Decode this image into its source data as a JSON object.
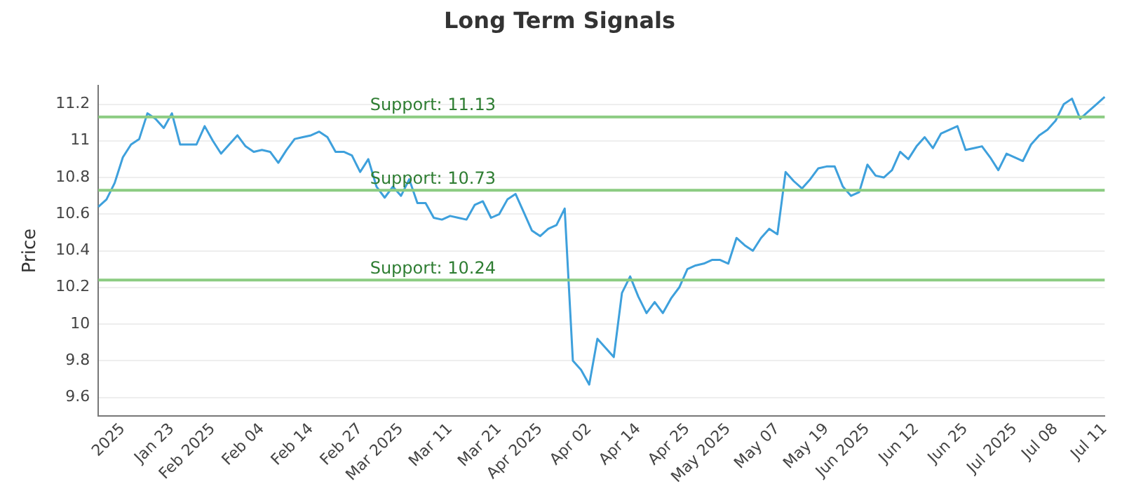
{
  "chart_data": {
    "type": "line",
    "title": "Long Term Signals",
    "ylabel": "Price",
    "categories": [
      null,
      null,
      null,
      "2025",
      null,
      null,
      null,
      null,
      null,
      "Jan 23",
      null,
      null,
      null,
      null,
      "Feb 2025",
      null,
      null,
      null,
      null,
      null,
      "Feb 04",
      null,
      null,
      null,
      null,
      null,
      "Feb 14",
      null,
      null,
      null,
      null,
      null,
      "Feb 27",
      null,
      null,
      null,
      null,
      "Mar 2025",
      null,
      null,
      null,
      null,
      null,
      "Mar 11",
      null,
      null,
      null,
      null,
      null,
      "Mar 21",
      null,
      null,
      null,
      null,
      "Apr 2025",
      null,
      null,
      null,
      null,
      null,
      "Apr 02",
      null,
      null,
      null,
      null,
      null,
      "Apr 14",
      null,
      null,
      null,
      null,
      null,
      "Apr 25",
      null,
      null,
      null,
      null,
      "May 2025",
      null,
      null,
      null,
      null,
      null,
      "May 07",
      null,
      null,
      null,
      null,
      null,
      "May 19",
      null,
      null,
      null,
      null,
      "Jun 2025",
      null,
      null,
      null,
      null,
      null,
      "Jun 12",
      null,
      null,
      null,
      null,
      null,
      "Jun 25",
      null,
      null,
      null,
      null,
      null,
      "Jul 2025",
      null,
      null,
      null,
      null,
      "Jul 08",
      null,
      null,
      null,
      null,
      null,
      "Jul 11"
    ],
    "series": [
      {
        "color": "#3ea0dc",
        "values": [
          10.64,
          10.68,
          10.77,
          10.91,
          10.98,
          11.01,
          11.15,
          11.12,
          11.07,
          11.15,
          10.98,
          10.98,
          10.98,
          11.08,
          11.0,
          10.93,
          10.98,
          11.03,
          10.97,
          10.94,
          10.95,
          10.94,
          10.88,
          10.95,
          11.01,
          11.02,
          11.03,
          11.05,
          11.02,
          10.94,
          10.94,
          10.92,
          10.83,
          10.9,
          10.75,
          10.69,
          10.75,
          10.7,
          10.79,
          10.66,
          10.66,
          10.58,
          10.57,
          10.59,
          10.58,
          10.57,
          10.65,
          10.67,
          10.58,
          10.6,
          10.68,
          10.71,
          10.61,
          10.51,
          10.48,
          10.52,
          10.54,
          10.63,
          9.8,
          9.75,
          9.67,
          9.92,
          9.87,
          9.82,
          10.17,
          10.26,
          10.15,
          10.06,
          10.12,
          10.06,
          10.14,
          10.2,
          10.3,
          10.32,
          10.33,
          10.35,
          10.35,
          10.33,
          10.47,
          10.43,
          10.4,
          10.47,
          10.52,
          10.49,
          10.83,
          10.78,
          10.74,
          10.79,
          10.85,
          10.86,
          10.86,
          10.75,
          10.7,
          10.72,
          10.87,
          10.81,
          10.8,
          10.84,
          10.94,
          10.9,
          10.97,
          11.02,
          10.96,
          11.04,
          11.06,
          11.08,
          10.95,
          10.96,
          10.97,
          10.91,
          10.84,
          10.93,
          10.91,
          10.89,
          10.98,
          11.03,
          11.06,
          11.11,
          11.2,
          11.23,
          11.12,
          11.16,
          11.2,
          11.24
        ]
      }
    ],
    "ylim": [
      9.5,
      11.3
    ],
    "yticks": [
      9.6,
      9.8,
      10.0,
      10.2,
      10.4,
      10.6,
      10.8,
      11.0,
      11.2
    ],
    "ref_lines": [
      {
        "axis": "y",
        "value": 11.13,
        "label": "Support: 11.13",
        "color": "#8ccc82"
      },
      {
        "axis": "y",
        "value": 10.73,
        "label": "Support: 10.73",
        "color": "#8ccc82"
      },
      {
        "axis": "y",
        "value": 10.24,
        "label": "Support: 10.24",
        "color": "#8ccc82"
      }
    ],
    "grid": "y",
    "legend": false,
    "marker": "none",
    "line_style": "solid"
  }
}
